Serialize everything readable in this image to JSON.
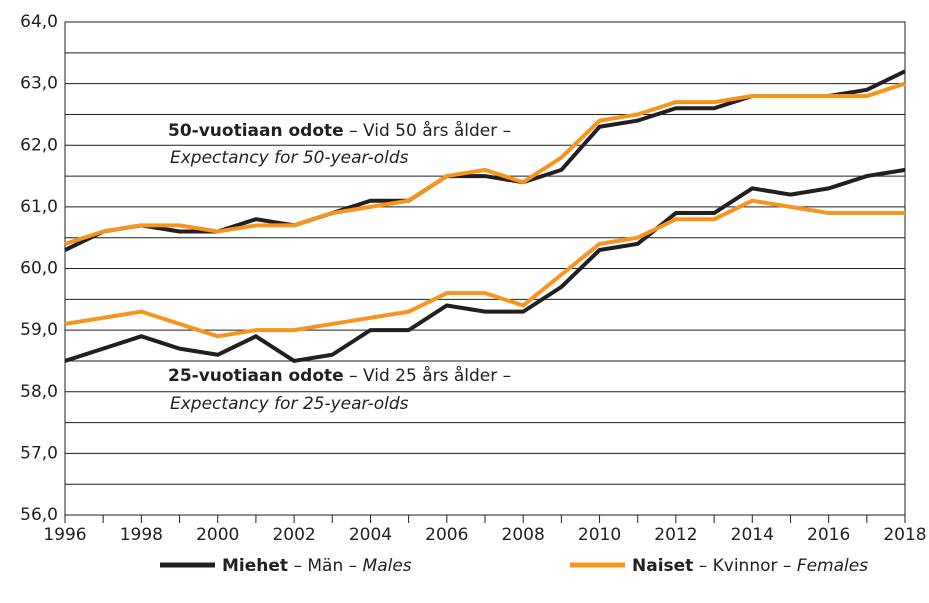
{
  "chart_data": {
    "type": "line",
    "x": [
      1996,
      1997,
      1998,
      1999,
      2000,
      2001,
      2002,
      2003,
      2004,
      2005,
      2006,
      2007,
      2008,
      2009,
      2010,
      2011,
      2012,
      2013,
      2014,
      2015,
      2016,
      2017,
      2018
    ],
    "xlim": [
      1996,
      2018
    ],
    "xticks": [
      1996,
      1998,
      2000,
      2002,
      2004,
      2006,
      2008,
      2010,
      2012,
      2014,
      2016,
      2018
    ],
    "minor_xticks": [
      1997,
      1999,
      2001,
      2003,
      2005,
      2007,
      2009,
      2011,
      2013,
      2015,
      2017
    ],
    "ylim": [
      56,
      64
    ],
    "yticks": [
      {
        "value": 56,
        "label": "56,0"
      },
      {
        "value": 57,
        "label": "57,0"
      },
      {
        "value": 58,
        "label": "58,0"
      },
      {
        "value": 59,
        "label": "59,0"
      },
      {
        "value": 60,
        "label": "60,0"
      },
      {
        "value": 61,
        "label": "61,0"
      },
      {
        "value": 62,
        "label": "62,0"
      },
      {
        "value": 63,
        "label": "63,0"
      },
      {
        "value": 64,
        "label": "64,0"
      }
    ],
    "minor_yticks": [
      56.5,
      57.5,
      58.5,
      59.5,
      60.5,
      61.5,
      62.5,
      63.5
    ],
    "grid": true,
    "series": [
      {
        "name": {
          "fi": "Miehet",
          "sv": " – Män – ",
          "en": "Males"
        },
        "color": "#231f20",
        "values_50": [
          60.3,
          60.6,
          60.7,
          60.6,
          60.6,
          60.8,
          60.7,
          60.9,
          61.1,
          61.1,
          61.5,
          61.5,
          61.4,
          61.6,
          62.3,
          62.4,
          62.6,
          62.6,
          62.8,
          62.8,
          62.8,
          62.9,
          63.2
        ],
        "values_25": [
          58.5,
          58.7,
          58.9,
          58.7,
          58.6,
          58.9,
          58.5,
          58.6,
          59.0,
          59.0,
          59.4,
          59.3,
          59.3,
          59.7,
          60.3,
          60.4,
          60.9,
          60.9,
          61.3,
          61.2,
          61.3,
          61.5,
          61.6
        ]
      },
      {
        "name": {
          "fi": "Naiset",
          "sv": " – Kvinnor – ",
          "en": "Females"
        },
        "color": "#f7941d",
        "values_50": [
          60.4,
          60.6,
          60.7,
          60.7,
          60.6,
          60.7,
          60.7,
          60.9,
          61.0,
          61.1,
          61.5,
          61.6,
          61.4,
          61.8,
          62.4,
          62.5,
          62.7,
          62.7,
          62.8,
          62.8,
          62.8,
          62.8,
          63.0
        ],
        "values_25": [
          59.1,
          59.2,
          59.3,
          59.1,
          58.9,
          59.0,
          59.0,
          59.1,
          59.2,
          59.3,
          59.6,
          59.6,
          59.4,
          59.9,
          60.4,
          60.5,
          60.8,
          60.8,
          61.1,
          61.0,
          60.9,
          60.9,
          60.9
        ]
      }
    ],
    "annotations": [
      {
        "fi": "50-vuotiaan odote",
        "sv": " – Vid 50 års ålder –",
        "en": "Expectancy for 50-year-olds"
      },
      {
        "fi": "25-vuotiaan odote",
        "sv": " – Vid 25 års ålder –",
        "en": "Expectancy for 25-year-olds"
      }
    ]
  }
}
